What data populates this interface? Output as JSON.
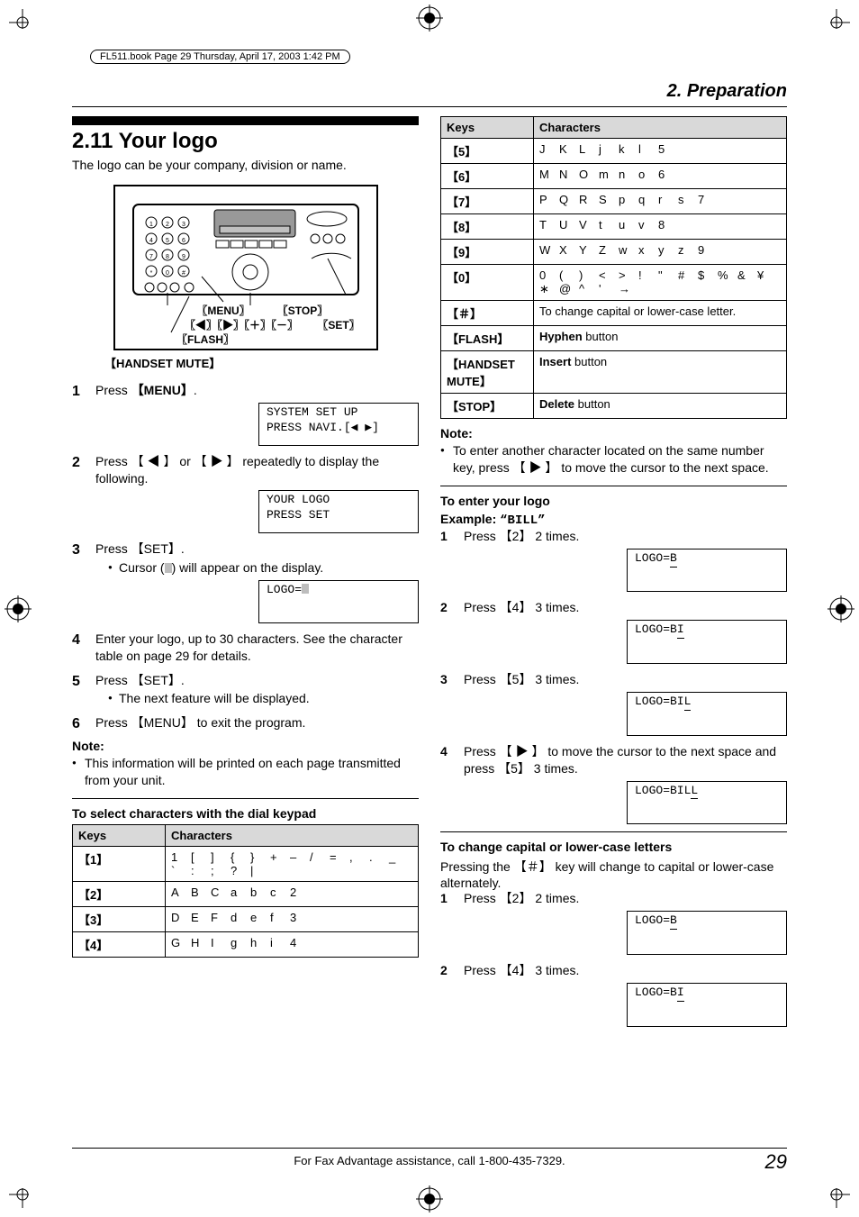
{
  "running_head": "FL511.book  Page 29  Thursday, April 17, 2003  1:42 PM",
  "chapter_title": "2. Preparation",
  "section_number_title": "2.11 Your logo",
  "section_lead": "The logo can be your company, division or name.",
  "fig": {
    "row1_left": "【MENU】",
    "row1_right": "【STOP】",
    "row2": "【 ◀ 】【 ▶ 】【＋】【－】",
    "row2_right": "【SET】",
    "row3": "【FLASH】",
    "below": "【HANDSET MUTE】"
  },
  "steps_main": {
    "s1": "Press 【MENU】.",
    "lcd1_l1": "SYSTEM SET UP",
    "lcd1_l2": "PRESS NAVI.[◀ ▶]",
    "s2": "Press 【 ◀ 】 or 【 ▶ 】 repeatedly to display the following.",
    "lcd2_l1": "YOUR LOGO",
    "lcd2_l2": "PRESS SET",
    "s3": "Press 【SET】.",
    "s3_b": "Cursor ( ) will appear on the display.",
    "lcd3": "LOGO=",
    "s4": "Enter your logo, up to 30 characters. See the character table on page 29 for details.",
    "s5": "Press 【SET】.",
    "s5_b": "The next feature will be displayed.",
    "s6": "Press 【MENU】 to exit the program."
  },
  "note_main_head": "Note:",
  "note_main": "This information will be printed on each page transmitted from your unit.",
  "sub_heading_select": "To select characters with the dial keypad",
  "table_left": {
    "head_keys": "Keys",
    "head_chars": "Characters",
    "rows": [
      {
        "k": "【1】",
        "c": [
          "1",
          "[",
          "]",
          "{",
          "}",
          "+",
          "–",
          "/",
          "=",
          ",",
          ".",
          "_",
          "`",
          ":",
          ";",
          "?",
          "|"
        ]
      },
      {
        "k": "【2】",
        "c": [
          "A",
          "B",
          "C",
          "a",
          "b",
          "c",
          "2"
        ]
      },
      {
        "k": "【3】",
        "c": [
          "D",
          "E",
          "F",
          "d",
          "e",
          "f",
          "3"
        ]
      },
      {
        "k": "【4】",
        "c": [
          "G",
          "H",
          "I",
          "g",
          "h",
          "i",
          "4"
        ]
      }
    ]
  },
  "table_right": {
    "head_keys": "Keys",
    "head_chars": "Characters",
    "rows": [
      {
        "k": "【5】",
        "c": [
          "J",
          "K",
          "L",
          "j",
          "k",
          "l",
          "5"
        ]
      },
      {
        "k": "【6】",
        "c": [
          "M",
          "N",
          "O",
          "m",
          "n",
          "o",
          "6"
        ]
      },
      {
        "k": "【7】",
        "c": [
          "P",
          "Q",
          "R",
          "S",
          "p",
          "q",
          "r",
          "s",
          "7"
        ]
      },
      {
        "k": "【8】",
        "c": [
          "T",
          "U",
          "V",
          "t",
          "u",
          "v",
          "8"
        ]
      },
      {
        "k": "【9】",
        "c": [
          "W",
          "X",
          "Y",
          "Z",
          "w",
          "x",
          "y",
          "z",
          "9"
        ]
      },
      {
        "k": "【0】",
        "c": [
          "0",
          "(",
          ")",
          "<",
          ">",
          "!",
          "\"",
          "#",
          "$",
          "%",
          "&",
          "¥",
          "∗",
          "@",
          "^",
          "'",
          "→"
        ]
      }
    ],
    "hash_key": "【＃】",
    "hash_desc": "To change capital or lower-case letter.",
    "flash_key": "【FLASH】",
    "flash_desc_b": "Hyphen",
    "flash_desc": " button",
    "mute_key": "【HANDSET MUTE】",
    "mute_desc_b": "Insert",
    "mute_desc": " button",
    "stop_key": "【STOP】",
    "stop_desc_b": "Delete",
    "stop_desc": " button"
  },
  "note_right_head": "Note:",
  "note_right": "To enter another character located on the same number key, press 【 ▶ 】 to move the cursor to the next space.",
  "enter_logo_head": "To enter your logo",
  "enter_logo_ex_label": "Example: ",
  "enter_logo_ex_value": "“BILL”",
  "enter_steps": {
    "s1": "Press 【2】 2 times.",
    "lcd1": "LOGO=B",
    "s2": "Press 【4】 3 times.",
    "lcd2": "LOGO=BI",
    "s3": "Press 【5】 3 times.",
    "lcd3": "LOGO=BIL",
    "s4": "Press 【 ▶ 】 to move the cursor to the next space and press 【5】 3 times.",
    "lcd4": "LOGO=BILL"
  },
  "case_head": "To change capital or lower-case letters",
  "case_body": "Pressing the 【＃】 key will change to capital or lower-case alternately.",
  "case_steps": {
    "s1": "Press 【2】 2 times.",
    "lcd1": "LOGO=B",
    "s2": "Press 【4】 3 times.",
    "lcd2": "LOGO=BI"
  },
  "footer_text": "For Fax Advantage assistance, call 1-800-435-7329.",
  "page_number": "29",
  "colors": {
    "header_bg": "#d9d9d9",
    "cursor": "#bdbdbd"
  }
}
